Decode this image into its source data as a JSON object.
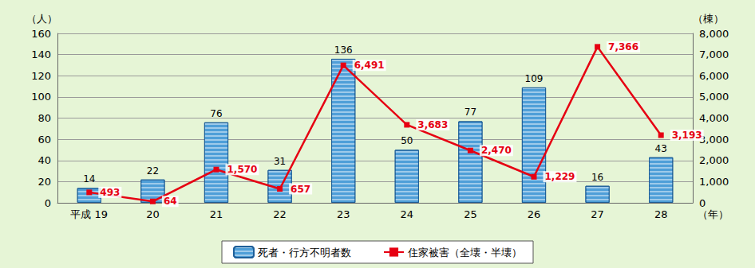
{
  "chart_data": {
    "type": "bar",
    "categories": [
      "平成 19",
      "20",
      "21",
      "22",
      "23",
      "24",
      "25",
      "26",
      "27",
      "28"
    ],
    "xlabel": "（年）",
    "ylabel": "（人）",
    "y2label": "（棟）",
    "ylim": [
      0,
      160
    ],
    "yticks": [
      0,
      20,
      40,
      60,
      80,
      100,
      120,
      140,
      160
    ],
    "y2lim": [
      0,
      8000
    ],
    "y2ticks": [
      0,
      {
        "value": 1000,
        "label": "1,000"
      },
      {
        "value": 2000,
        "label": "2,000"
      },
      {
        "value": 3000,
        "label": "3,000"
      },
      {
        "value": 4000,
        "label": "4,000"
      },
      {
        "value": 5000,
        "label": "5,000"
      },
      {
        "value": 6000,
        "label": "6,000"
      },
      {
        "value": 7000,
        "label": "7,000"
      },
      {
        "value": 8000,
        "label": "8,000"
      }
    ],
    "grid": true,
    "legend": "bottom",
    "series": [
      {
        "name": "死者・行方不明者数",
        "type": "bar",
        "color": "#4f9fd8",
        "values": [
          14,
          22,
          76,
          31,
          136,
          50,
          77,
          109,
          16,
          43
        ],
        "data_labels": true
      },
      {
        "name": "住家被害（全壊・半壊）",
        "type": "line",
        "axis": "y2",
        "color": "#e60012",
        "marker": "square",
        "values": [
          493,
          64,
          1570,
          657,
          6491,
          3683,
          2470,
          1229,
          7366,
          3193
        ],
        "value_labels": [
          "493",
          "64",
          "1,570",
          "657",
          "6,491",
          "3,683",
          "2,470",
          "1,229",
          "7,366",
          "3,193"
        ],
        "data_labels": true
      }
    ]
  }
}
